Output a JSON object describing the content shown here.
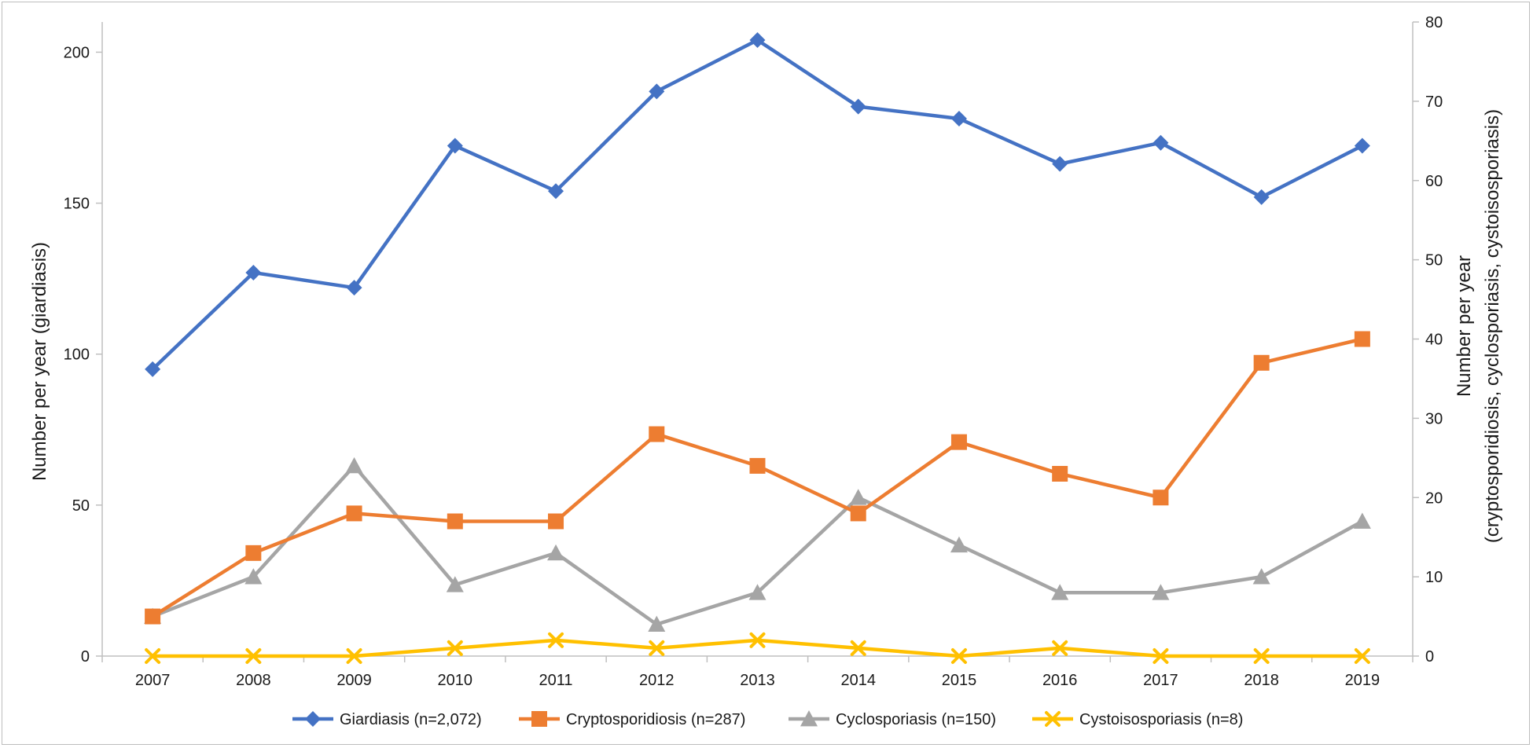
{
  "chart_data": {
    "type": "line",
    "title": "",
    "x": [
      "2007",
      "2008",
      "2009",
      "2010",
      "2011",
      "2012",
      "2013",
      "2014",
      "2015",
      "2016",
      "2017",
      "2018",
      "2019"
    ],
    "y_left": {
      "label": "Number per year (giardiasis)",
      "range": [
        0,
        210
      ],
      "ticks": [
        0,
        50,
        100,
        150,
        200
      ]
    },
    "y_right": {
      "label_lines": [
        "Number per year",
        "(cryptosporidiosis, cyclosporiasis, cystoisosporiasis)"
      ],
      "range": [
        0,
        80
      ],
      "ticks": [
        0,
        10,
        20,
        30,
        40,
        50,
        60,
        70,
        80
      ]
    },
    "series": [
      {
        "name": "Giardiasis (n=2,072)",
        "axis": "left",
        "color": "#4472C4",
        "marker": "diamond",
        "values": [
          95,
          127,
          122,
          169,
          154,
          187,
          204,
          182,
          178,
          163,
          170,
          152,
          169
        ]
      },
      {
        "name": "Cryptosporidiosis (n=287)",
        "axis": "right",
        "color": "#ED7D31",
        "marker": "square",
        "values": [
          5,
          13,
          18,
          17,
          17,
          28,
          24,
          18,
          27,
          23,
          20,
          37,
          40
        ]
      },
      {
        "name": "Cyclosporiasis (n=150)",
        "axis": "right",
        "color": "#A5A5A5",
        "marker": "triangle",
        "values": [
          5,
          10,
          24,
          9,
          13,
          4,
          8,
          20,
          14,
          8,
          8,
          10,
          17
        ]
      },
      {
        "name": "Cystoisosporiasis (n=8)",
        "axis": "right",
        "color": "#FFC000",
        "marker": "x",
        "values": [
          0,
          0,
          0,
          1,
          2,
          1,
          2,
          1,
          0,
          1,
          0,
          0,
          0
        ]
      }
    ],
    "grid": false,
    "legend_position": "bottom"
  }
}
